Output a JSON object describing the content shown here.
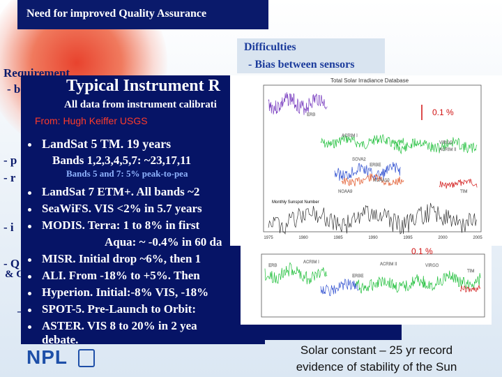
{
  "slide": {
    "title": "Need for improved Quality Assurance",
    "difficulties": {
      "heading": "Difficulties",
      "item": "- Bias between sensors"
    },
    "requirement": {
      "heading": "Requirement",
      "fragments": [
        "- b",
        "- p",
        "- r",
        "- i",
        "- Q",
        "& C",
        "–"
      ]
    },
    "panel": {
      "title": "Typical Instrument R",
      "intro": "All data from instrument calibrati",
      "source": "From: Hugh Keiffer USGS",
      "items": [
        "LandSat 5 TM.   19 years",
        "Bands 1,2,3,4,5,7:   ~23,17,11",
        "Bands 5 and 7:  5% peak-to-pea",
        "LandSat 7 ETM+.   All bands ~2",
        "SeaWiFS.   VIS <2% in 5.7 years",
        "MODIS.   Terra: 1 to 8% in first",
        "Aqua: ~ -0.4% in 60 da",
        "MISR.   Initial drop ~6%, then 1",
        "ALI.   From -18% to +5%.  Then",
        "Hyperion.   Initial:-8% VIS, -18%",
        "SPOT-5.   Pre-Launch to Orbit:",
        "ASTER.   VIS 8 to 20% in 2 yea",
        "debate."
      ]
    },
    "tsi_chart": {
      "title": "Total Solar Irradiance Database",
      "scale_note": "0.1 %",
      "labels": [
        "ERB",
        "ACRIM I",
        "ACRIM II",
        "VIRGO",
        "SOVA2",
        "ERBE",
        "NOAA9",
        "NOAA10",
        "TIM",
        "Monthly Sunspot Number"
      ],
      "x_ticks": [
        "1975",
        "1980",
        "1985",
        "1990",
        "1995",
        "2000",
        "2005"
      ]
    },
    "composite_chart": {
      "scale_note": "0.1 %",
      "labels": [
        "ERB",
        "ACRIM I",
        "ERBE",
        "ACRIM II",
        "VIRGO",
        "TIM"
      ]
    },
    "caption": [
      "Solar constant – 25 yr record",
      "evidence of stability of the Sun"
    ],
    "logo": "NPL"
  }
}
